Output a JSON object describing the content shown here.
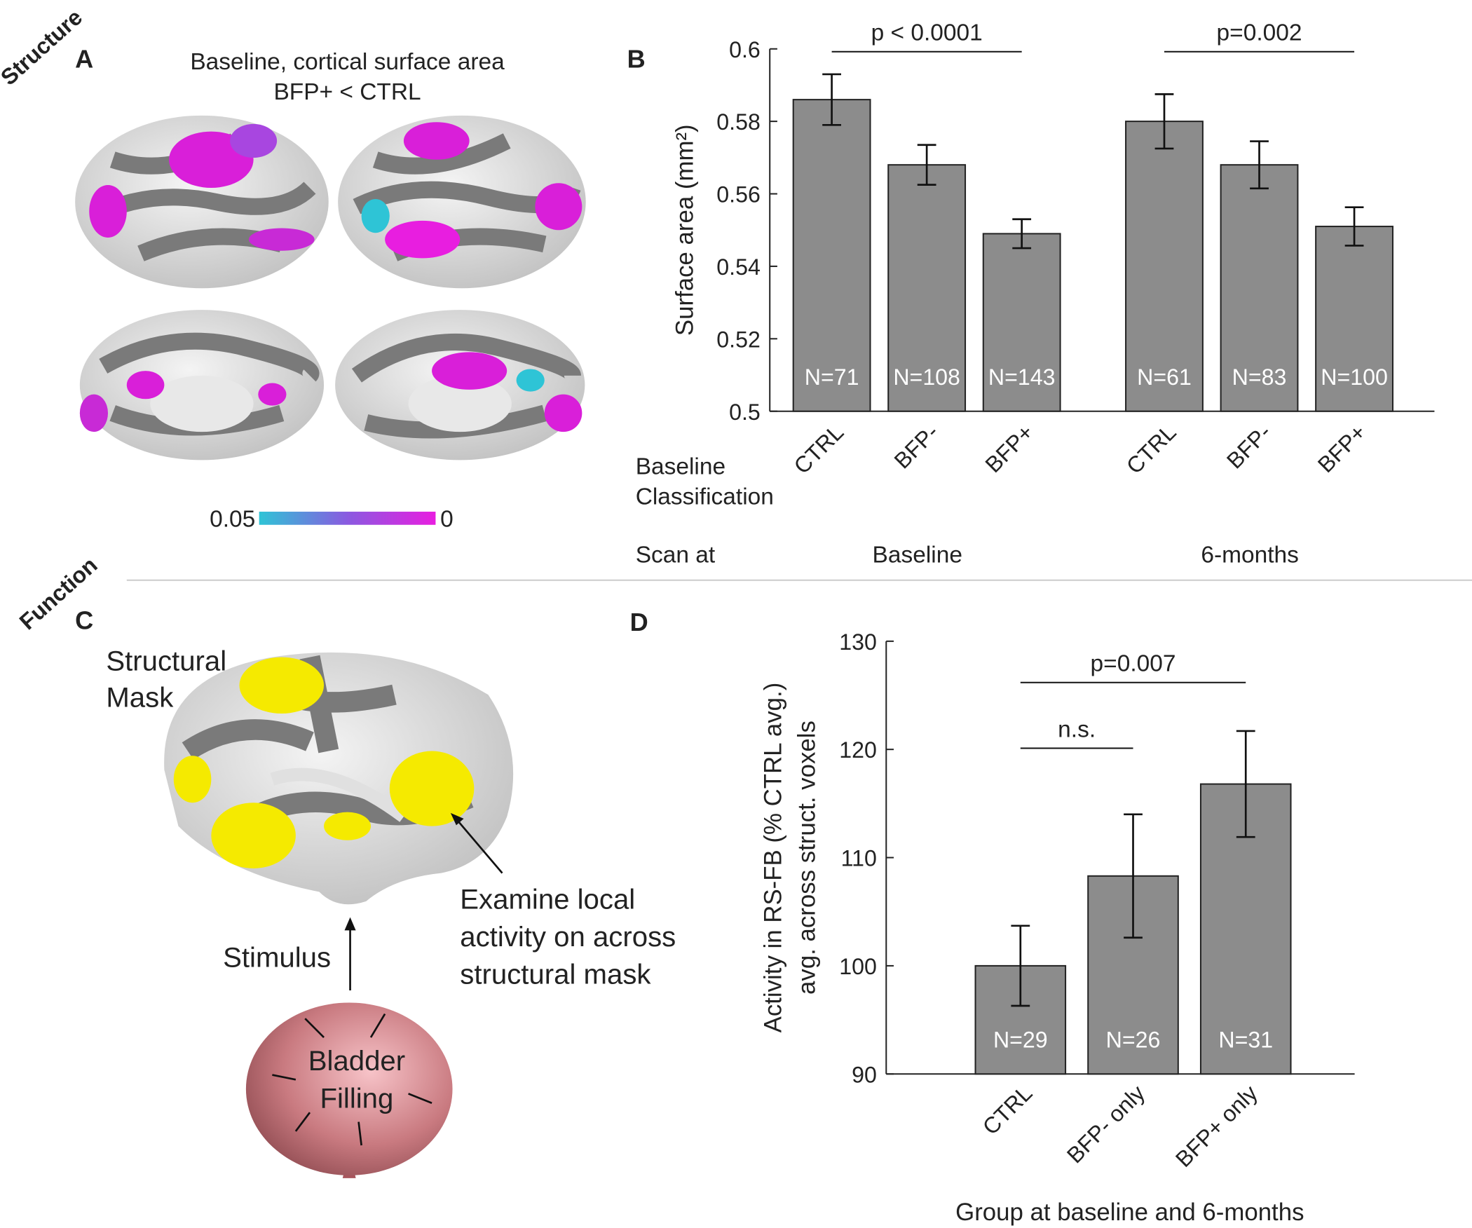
{
  "row_labels": [
    "Structure",
    "Function"
  ],
  "panel_letters": [
    "A",
    "B",
    "C",
    "D"
  ],
  "panel_a": {
    "title": [
      "Baseline, cortical surface area",
      "BFP+ < CTRL"
    ],
    "colorbar": [
      0.05,
      0
    ]
  },
  "panel_c": {
    "mask_label": [
      "Structural",
      "Mask"
    ],
    "annotation": [
      "Examine local",
      "activity on across",
      "structural mask"
    ],
    "stimulus": "Stimulus",
    "bladder": [
      "Bladder",
      "Filling"
    ]
  },
  "chart_data": [
    {
      "type": "bar",
      "ylabel": [
        "Surface area (mm²)"
      ],
      "categories": [
        "CTRL",
        "BFP-",
        "BFP+",
        "CTRL",
        "BFP-",
        "BFP+"
      ],
      "values": [
        0.586,
        0.568,
        0.549,
        0.58,
        0.568,
        0.551
      ],
      "errors": [
        0.007,
        0.0055,
        0.004,
        0.0075,
        0.0065,
        0.0053
      ],
      "n_labels": [
        "N=71",
        "N=108",
        "N=143",
        "N=61",
        "N=83",
        "N=100"
      ],
      "category_row_label": [
        "Baseline",
        "Classification"
      ],
      "group_row_label": "Scan at",
      "groups": [
        {
          "label": "Baseline",
          "categories": [
            0,
            1,
            2
          ]
        },
        {
          "label": "6-months",
          "categories": [
            3,
            4,
            5
          ]
        }
      ],
      "annotations": [
        {
          "text": "p < 0.0001",
          "categories": [
            0,
            2
          ]
        },
        {
          "text": "p=0.002",
          "categories": [
            3,
            5
          ]
        }
      ],
      "color": "#8c8c8c",
      "ylim": [
        0.5,
        0.6
      ],
      "yticks": [
        0.5,
        0.52,
        0.54,
        0.56,
        0.58,
        0.6
      ]
    },
    {
      "type": "bar",
      "ylabel": [
        "Activity in RS-FB (% CTRL avg.)",
        "avg. across struct. voxels"
      ],
      "xlabel": "Group at baseline and 6-months",
      "categories": [
        "CTRL",
        "BFP- only",
        "BFP+ only"
      ],
      "values": [
        100,
        108.3,
        116.8
      ],
      "errors": [
        3.7,
        5.7,
        4.9
      ],
      "n_labels": [
        "N=29",
        "N=26",
        "N=31"
      ],
      "annotations": [
        {
          "text": "p=0.007",
          "categories": [
            0,
            2
          ]
        },
        {
          "text": "n.s.",
          "categories": [
            0,
            1
          ]
        }
      ],
      "color": "#8c8c8c",
      "ylim": [
        90,
        130
      ],
      "yticks": [
        90,
        100,
        110,
        120,
        130
      ]
    }
  ]
}
